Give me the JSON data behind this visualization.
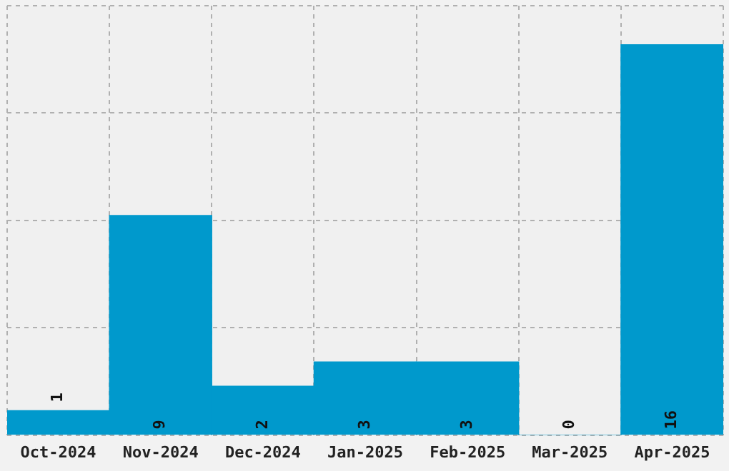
{
  "chart_data": {
    "type": "bar",
    "categories": [
      "Oct-2024",
      "Nov-2024",
      "Dec-2024",
      "Jan-2025",
      "Feb-2025",
      "Mar-2025",
      "Apr-2025"
    ],
    "values": [
      1,
      9,
      2,
      3,
      3,
      0,
      16
    ],
    "color": "#0099cc",
    "ylim": [
      0,
      17.6
    ],
    "yticks": [
      {
        "value": 0,
        "label": null
      },
      {
        "value": 4.4,
        "label": null
      },
      {
        "value": 8.8,
        "label": null
      },
      {
        "value": 13.2,
        "label": null
      },
      {
        "value": 17.6,
        "label": null
      }
    ],
    "tick_labels": "x",
    "grid": true,
    "data_labels": true
  }
}
